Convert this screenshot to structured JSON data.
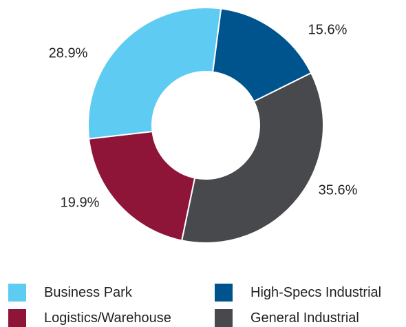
{
  "chart_data": {
    "type": "pie",
    "donut": true,
    "start": "top, clockwise",
    "slices": [
      {
        "name": "High-Specs Industrial",
        "value": 15.6,
        "label": "15.6%",
        "color": "#00548e"
      },
      {
        "name": "General Industrial",
        "value": 35.6,
        "label": "35.6%",
        "color": "#48494d"
      },
      {
        "name": "Logistics/Warehouse",
        "value": 19.9,
        "label": "19.9%",
        "color": "#8e1537"
      },
      {
        "name": "Business Park",
        "value": 28.9,
        "label": "28.9%",
        "color": "#5ecbf2"
      }
    ],
    "legend": [
      {
        "name": "Business Park",
        "color": "#5ecbf2"
      },
      {
        "name": "High-Specs Industrial",
        "color": "#00548e"
      },
      {
        "name": "Logistics/Warehouse",
        "color": "#8e1537"
      },
      {
        "name": "General Industrial",
        "color": "#48494d"
      }
    ],
    "legend_placement": "bottom, two columns"
  }
}
